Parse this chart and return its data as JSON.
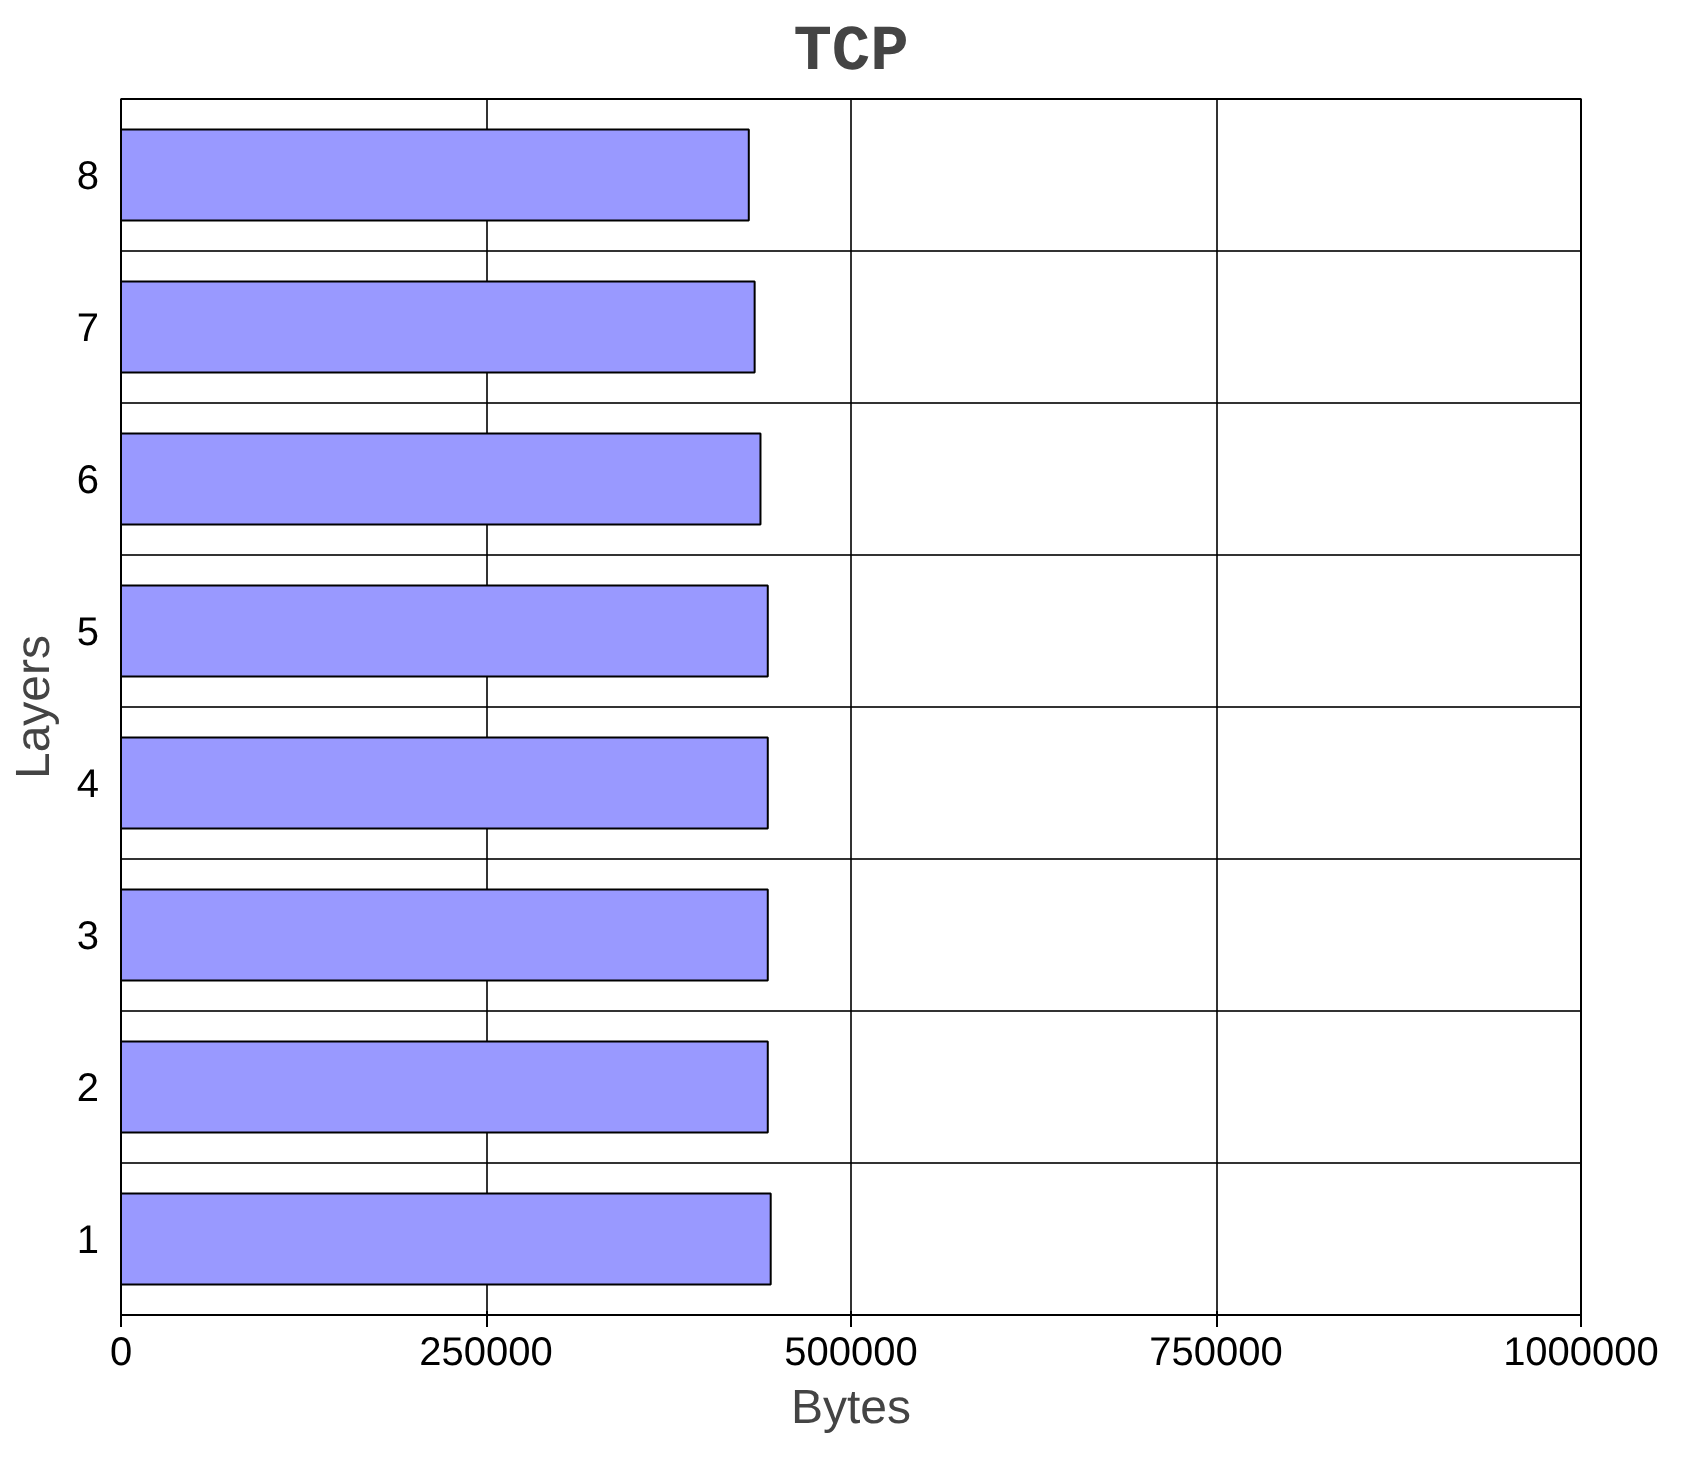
{
  "chart_data": {
    "type": "bar",
    "orientation": "horizontal",
    "title": "TCP",
    "xlabel": "Bytes",
    "ylabel": "Layers",
    "categories": [
      "8",
      "7",
      "6",
      "5",
      "4",
      "3",
      "2",
      "1"
    ],
    "values": [
      430000,
      434000,
      438000,
      443000,
      443000,
      443000,
      443000,
      445000
    ],
    "color": "#9999ff",
    "xlim": [
      0,
      1000000
    ],
    "xticks": [
      0,
      250000,
      500000,
      750000,
      1000000
    ],
    "grid": true
  }
}
